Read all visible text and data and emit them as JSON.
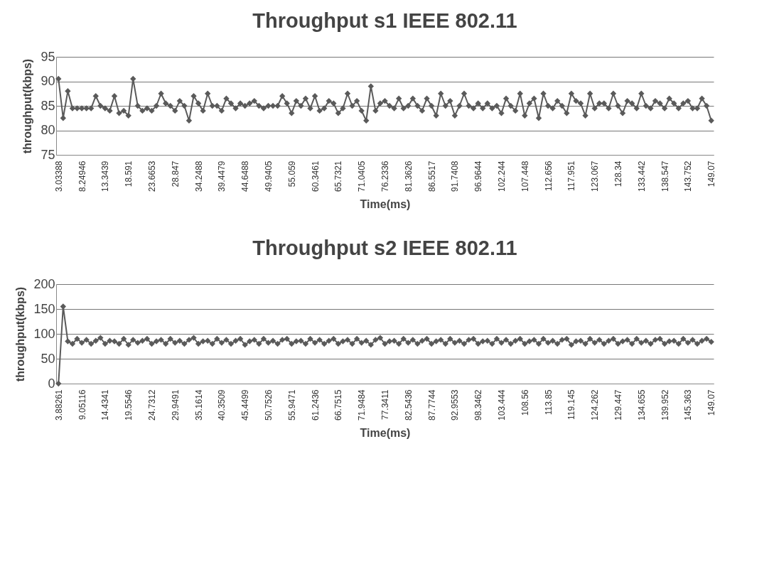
{
  "chart_data": [
    {
      "type": "line",
      "title": "Throughput s1 IEEE 802.11",
      "xlabel": "Time(ms)",
      "ylabel": "throughput(kbps)",
      "ylim": [
        75,
        95
      ],
      "yticks": [
        75,
        80,
        85,
        90,
        95
      ],
      "grid": "y",
      "marker": "diamond",
      "line_style": "solid",
      "categories": [
        "3.03388",
        null,
        null,
        null,
        null,
        "8.24946",
        null,
        null,
        null,
        null,
        "13.3439",
        null,
        null,
        null,
        null,
        "18.591",
        null,
        null,
        null,
        null,
        "23.6653",
        null,
        null,
        null,
        null,
        "28.847",
        null,
        null,
        null,
        null,
        "34.2488",
        null,
        null,
        null,
        null,
        "39.4479",
        null,
        null,
        null,
        null,
        "44.6488",
        null,
        null,
        null,
        null,
        "49.9405",
        null,
        null,
        null,
        null,
        "55.059",
        null,
        null,
        null,
        null,
        "60.3461",
        null,
        null,
        null,
        null,
        "65.7321",
        null,
        null,
        null,
        null,
        "71.0405",
        null,
        null,
        null,
        null,
        "76.2336",
        null,
        null,
        null,
        null,
        "81.3626",
        null,
        null,
        null,
        null,
        "86.5517",
        null,
        null,
        null,
        null,
        "91.7408",
        null,
        null,
        null,
        null,
        "96.9644",
        null,
        null,
        null,
        null,
        "102.244",
        null,
        null,
        null,
        null,
        "107.448",
        null,
        null,
        null,
        null,
        "112.656",
        null,
        null,
        null,
        null,
        "117.951",
        null,
        null,
        null,
        null,
        "123.067",
        null,
        null,
        null,
        null,
        "128.34",
        null,
        null,
        null,
        null,
        "133.442",
        null,
        null,
        null,
        null,
        "138.547",
        null,
        null,
        null,
        null,
        "143.752",
        null,
        null,
        null,
        null,
        "149.07"
      ],
      "series": [
        {
          "color": "#5a5a5a",
          "values": [
            90.5,
            82.5,
            88,
            84.5,
            84.5,
            84.5,
            84.5,
            84.5,
            87,
            85,
            84.5,
            84,
            87,
            83.5,
            84,
            83,
            90.5,
            85,
            84,
            84.5,
            84,
            85,
            87.5,
            85.5,
            85,
            84,
            86,
            85,
            82,
            87,
            85.5,
            84,
            87.5,
            85,
            85,
            84,
            86.5,
            85.5,
            84.5,
            85.5,
            85,
            85.5,
            86,
            85,
            84.5,
            85,
            85,
            85,
            87,
            85.5,
            83.5,
            86,
            85,
            86.5,
            84.5,
            87,
            84,
            84.5,
            86,
            85.5,
            83.5,
            84.5,
            87.5,
            85,
            86,
            84,
            82,
            89,
            84,
            85.5,
            86,
            85,
            84.5,
            86.5,
            84.5,
            85,
            86.5,
            85,
            84,
            86.5,
            85,
            83,
            87.5,
            85,
            86,
            83,
            85,
            87.5,
            85,
            84.5,
            85.5,
            84.5,
            85.5,
            84.5,
            85,
            83.5,
            86.5,
            85,
            84,
            87.5,
            83,
            85.5,
            86.5,
            82.5,
            87.5,
            85,
            84.5,
            86,
            85,
            83.5,
            87.5,
            86,
            85.5,
            83,
            87.5,
            84.5,
            85.5,
            85.5,
            84.5,
            87.5,
            85,
            83.5,
            86,
            85.5,
            84.5,
            87.5,
            85,
            84.5,
            86,
            85.5,
            84.5,
            86.5,
            85.5,
            84.5,
            85.5,
            86,
            84.5,
            84.5,
            86.5,
            85,
            82
          ]
        }
      ]
    },
    {
      "type": "line",
      "title": "Throughput s2 IEEE 802.11",
      "xlabel": "Time(ms)",
      "ylabel": "throughput(kbps)",
      "ylim": [
        0,
        200
      ],
      "yticks": [
        0,
        50,
        100,
        150,
        200
      ],
      "grid": "y",
      "marker": "diamond",
      "line_style": "solid",
      "categories": [
        "3.88261",
        null,
        null,
        null,
        null,
        "9.05116",
        null,
        null,
        null,
        null,
        "14.4341",
        null,
        null,
        null,
        null,
        "19.5546",
        null,
        null,
        null,
        null,
        "24.7312",
        null,
        null,
        null,
        null,
        "29.9491",
        null,
        null,
        null,
        null,
        "35.1614",
        null,
        null,
        null,
        null,
        "40.3509",
        null,
        null,
        null,
        null,
        "45.4499",
        null,
        null,
        null,
        null,
        "50.7526",
        null,
        null,
        null,
        null,
        "55.9471",
        null,
        null,
        null,
        null,
        "61.2436",
        null,
        null,
        null,
        null,
        "66.7515",
        null,
        null,
        null,
        null,
        "71.9484",
        null,
        null,
        null,
        null,
        "77.3411",
        null,
        null,
        null,
        null,
        "82.5436",
        null,
        null,
        null,
        null,
        "87.7744",
        null,
        null,
        null,
        null,
        "92.9553",
        null,
        null,
        null,
        null,
        "98.3462",
        null,
        null,
        null,
        null,
        "103.444",
        null,
        null,
        null,
        null,
        "108.56",
        null,
        null,
        null,
        null,
        "113.85",
        null,
        null,
        null,
        null,
        "119.145",
        null,
        null,
        null,
        null,
        "124.262",
        null,
        null,
        null,
        null,
        "129.447",
        null,
        null,
        null,
        null,
        "134.655",
        null,
        null,
        null,
        null,
        "139.952",
        null,
        null,
        null,
        null,
        "145.363",
        null,
        null,
        null,
        null,
        "149.07"
      ],
      "series": [
        {
          "color": "#5a5a5a",
          "values": [
            0,
            155,
            85,
            80,
            90,
            82,
            88,
            80,
            86,
            92,
            80,
            86,
            85,
            80,
            90,
            78,
            88,
            82,
            86,
            90,
            80,
            85,
            88,
            80,
            90,
            82,
            86,
            80,
            88,
            92,
            80,
            85,
            86,
            80,
            90,
            82,
            88,
            80,
            86,
            90,
            78,
            85,
            88,
            80,
            90,
            82,
            86,
            80,
            88,
            90,
            80,
            85,
            86,
            80,
            90,
            82,
            88,
            80,
            86,
            90,
            80,
            85,
            88,
            80,
            90,
            82,
            86,
            78,
            88,
            92,
            80,
            85,
            86,
            80,
            90,
            82,
            88,
            80,
            86,
            90,
            80,
            85,
            88,
            80,
            90,
            82,
            86,
            80,
            88,
            90,
            80,
            85,
            86,
            80,
            90,
            82,
            88,
            80,
            86,
            90,
            80,
            85,
            88,
            80,
            90,
            82,
            86,
            80,
            88,
            90,
            78,
            85,
            86,
            80,
            90,
            82,
            88,
            80,
            86,
            90,
            80,
            85,
            88,
            80,
            90,
            82,
            86,
            80,
            88,
            90,
            80,
            85,
            86,
            80,
            90,
            82,
            88,
            80,
            86,
            90,
            84
          ]
        }
      ]
    }
  ]
}
